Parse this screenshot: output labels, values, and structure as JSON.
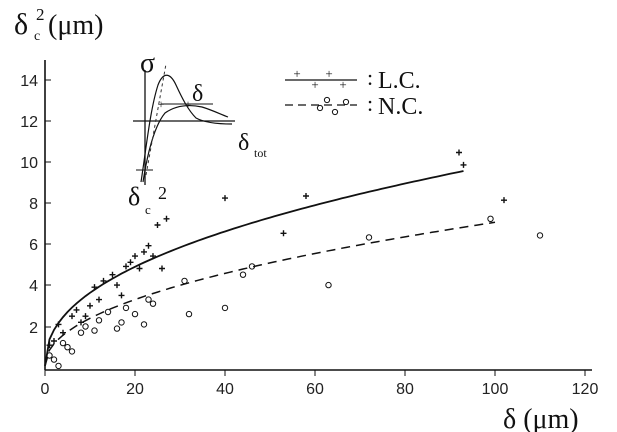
{
  "chart_data": {
    "type": "scatter",
    "xlabel": "δ (μm)",
    "ylabel_main": "δ",
    "ylabel_sub": "c",
    "ylabel_sup": "2",
    "ylabel_unit": "(μm)",
    "xlim": [
      0,
      120
    ],
    "ylim": [
      0,
      15
    ],
    "xticks": [
      "0",
      "20",
      "40",
      "60",
      "80",
      "100",
      "120"
    ],
    "yticks": [
      "2",
      "4",
      "6",
      "8",
      "10",
      "12",
      "14"
    ],
    "grid": false,
    "legend_position": "top-right",
    "series": [
      {
        "name": "L.C.",
        "marker": "plus",
        "points": [
          [
            1,
            1.2
          ],
          [
            2,
            1.4
          ],
          [
            3,
            2.2
          ],
          [
            4,
            1.8
          ],
          [
            6,
            2.6
          ],
          [
            7,
            2.9
          ],
          [
            8,
            2.3
          ],
          [
            9,
            2.6
          ],
          [
            10,
            3.1
          ],
          [
            11,
            4.0
          ],
          [
            12,
            3.4
          ],
          [
            13,
            4.3
          ],
          [
            15,
            4.6
          ],
          [
            16,
            4.1
          ],
          [
            17,
            3.6
          ],
          [
            18,
            5.0
          ],
          [
            19,
            5.2
          ],
          [
            20,
            5.5
          ],
          [
            21,
            4.9
          ],
          [
            22,
            5.7
          ],
          [
            23,
            6.0
          ],
          [
            24,
            5.5
          ],
          [
            25,
            7.0
          ],
          [
            26,
            4.9
          ],
          [
            27,
            7.3
          ],
          [
            40,
            8.3
          ],
          [
            53,
            6.6
          ],
          [
            58,
            8.4
          ],
          [
            92,
            10.5
          ],
          [
            93,
            9.9
          ],
          [
            102,
            8.2
          ]
        ]
      },
      {
        "name": "N.C.",
        "marker": "circle",
        "points": [
          [
            1,
            0.7
          ],
          [
            2,
            0.5
          ],
          [
            3,
            0.2
          ],
          [
            4,
            1.3
          ],
          [
            5,
            1.1
          ],
          [
            6,
            0.9
          ],
          [
            8,
            1.8
          ],
          [
            9,
            2.1
          ],
          [
            11,
            1.9
          ],
          [
            12,
            2.4
          ],
          [
            14,
            2.8
          ],
          [
            16,
            2.0
          ],
          [
            17,
            2.3
          ],
          [
            18,
            3.0
          ],
          [
            20,
            2.7
          ],
          [
            22,
            2.2
          ],
          [
            23,
            3.4
          ],
          [
            24,
            3.2
          ],
          [
            31,
            4.3
          ],
          [
            32,
            2.7
          ],
          [
            40,
            3.0
          ],
          [
            44,
            4.6
          ],
          [
            46,
            5.0
          ],
          [
            63,
            4.1
          ],
          [
            72,
            6.4
          ],
          [
            99,
            7.3
          ],
          [
            110,
            6.5
          ]
        ]
      }
    ],
    "fit_curves": [
      {
        "style": "solid",
        "x": [
          0,
          5,
          10,
          15,
          20,
          25,
          30,
          35,
          40,
          50,
          60,
          70,
          80,
          93
        ],
        "coef": 1.28,
        "exp": 0.44
      },
      {
        "style": "dashed",
        "x": [
          0,
          5,
          10,
          15,
          20,
          25,
          30,
          35,
          40,
          50,
          60,
          70,
          80,
          90,
          100
        ],
        "coef": 0.76,
        "exp": 0.48
      }
    ],
    "inset": {
      "sigma_label": "σ",
      "delta_label": "δ",
      "delta_tot_main": "δ",
      "delta_tot_sub": "tot",
      "delta_c_main": "δ",
      "delta_c_sub": "c",
      "delta_c_sup": "2"
    },
    "annotations": {
      "legend_lc_sep": ":",
      "legend_nc_sep": ":"
    }
  }
}
